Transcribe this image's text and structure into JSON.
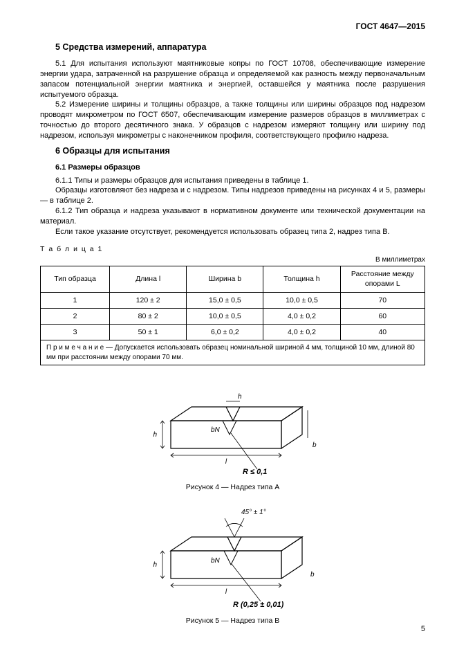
{
  "doc_id": "ГОСТ 4647—2015",
  "page_number": "5",
  "section5": {
    "title": "5 Средства измерений, аппаратура",
    "p1": "5.1 Для испытания используют маятниковые копры по ГОСТ 10708, обеспечивающие измерение энергии удара, затраченной на разрушение образца и определяемой как разность между первоначальным запасом потенциальной энергии маятника и энергией, оставшейся у маятника после разрушения испытуемого образца.",
    "p2": "5.2 Измерение ширины и толщины образцов, а также толщины или ширины образцов под надрезом проводят микрометром по ГОСТ 6507, обеспечивающим измерение размеров образцов в миллиметрах с точностью до второго десятичного знака. У образцов с надрезом измеряют толщину или ширину под надрезом, используя микрометры с наконечником профиля, соответствующего профилю надреза."
  },
  "section6": {
    "title": "6 Образцы для испытания",
    "sub1_title": "6.1 Размеры образцов",
    "p611": "6.1.1 Типы и размеры образцов для испытания приведены в таблице 1.",
    "p611b": "Образцы изготовляют без надреза и с надрезом. Типы надрезов приведены на рисунках 4 и 5, размеры — в таблице 2.",
    "p612": "6.1.2 Тип образца и надреза указывают в нормативном документе или технической документации на материал.",
    "p612b": "Если такое указание отсутствует, рекомендуется использовать образец типа 2, надрез типа В."
  },
  "table1": {
    "label": "Т а б л и ц а   1",
    "units": "В миллиметрах",
    "columns": [
      "Тип образца",
      "Длина l",
      "Ширина b",
      "Толщина h",
      "Расстояние между опорами L"
    ],
    "rows": [
      [
        "1",
        "120 ± 2",
        "15,0 ± 0,5",
        "10,0 ± 0,5",
        "70"
      ],
      [
        "2",
        "80 ± 2",
        "10,0 ± 0,5",
        "4,0 ± 0,2",
        "60"
      ],
      [
        "3",
        "50 ± 1",
        "6,0 ± 0,2",
        "4,0 ± 0,2",
        "40"
      ]
    ],
    "note": "П р и м е ч а н и е   —   Допускается использовать образец номинальной шириной 4 мм, толщиной 10 мм, длиной 80 мм при расстоянии между опорами 70 мм.",
    "col_widths": [
      "18%",
      "20%",
      "20%",
      "20%",
      "22%"
    ]
  },
  "figure4": {
    "caption": "Рисунок 4 — Надрез типа А",
    "labels": {
      "h": "h",
      "bn": "bN",
      "l": "l",
      "b": "b",
      "h2": "h",
      "r": "R ≤ 0,1"
    }
  },
  "figure5": {
    "caption": "Рисунок 5 — Надрез типа В",
    "labels": {
      "angle": "45° ± 1°",
      "h": "h",
      "bn": "bN",
      "l": "l",
      "b": "b",
      "r": "R (0,25 ± 0,01)"
    }
  },
  "style": {
    "text_color": "#000000",
    "bg_color": "#ffffff",
    "border_color": "#000000",
    "body_fontsize": 11,
    "heading_fontsize": 12.5,
    "table_fontsize": 10.5
  }
}
